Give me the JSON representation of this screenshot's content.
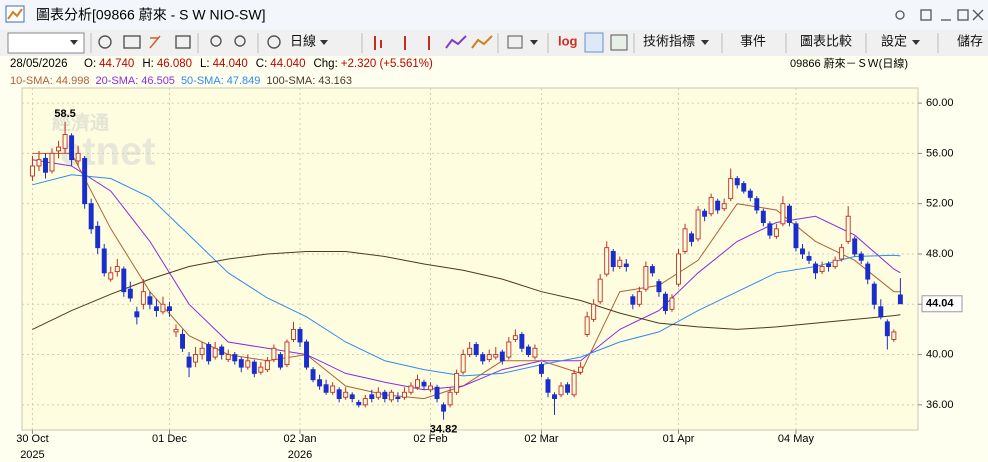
{
  "window": {
    "title": "圖表分析[09866 蔚來 - S W NIO-SW]",
    "toolbar": {
      "period": "日線",
      "log": "log",
      "indicators": "技術指標",
      "events": "事件",
      "compare": "圖表比較",
      "settings": "設定",
      "save": "儲存"
    }
  },
  "header": {
    "date": "28/05/2026",
    "fields": [
      {
        "label": "O:",
        "value": "44.740"
      },
      {
        "label": "H:",
        "value": "46.080"
      },
      {
        "label": "L:",
        "value": "44.040"
      },
      {
        "label": "C:",
        "value": "44.040"
      },
      {
        "label": "Chg:",
        "value": "+2.320 (+5.561%)"
      }
    ],
    "stock": "09866 蔚來－ＳＷ(日線)"
  },
  "watermark": [
    "經濟通",
    "etnet"
  ],
  "chart_data": {
    "type": "candlestick",
    "separator": ":",
    "ylim": [
      34,
      61.2
    ],
    "yticks": [
      {
        "value": 36,
        "label": "36.00"
      },
      {
        "value": 40,
        "label": "40.00"
      },
      {
        "value": 44,
        "label": "44.00"
      },
      {
        "value": 48,
        "label": "48.00"
      },
      {
        "value": 52,
        "label": "52.00"
      },
      {
        "value": 56,
        "label": "56.00"
      },
      {
        "value": 60,
        "label": "60.00"
      }
    ],
    "xlim": [
      -1.6,
      135.7
    ],
    "xticks": [
      {
        "value": 0,
        "label": "30 Oct"
      },
      {
        "value": 21,
        "label": "01 Dec"
      },
      {
        "value": 41,
        "label": "02 Jan"
      },
      {
        "value": 61,
        "label": "02 Feb"
      },
      {
        "value": 78,
        "label": "02 Mar"
      },
      {
        "value": 99,
        "label": "01 Apr"
      },
      {
        "value": 117,
        "label": "04 May"
      }
    ],
    "xtick_years": [
      {
        "value": 0,
        "label": "2025"
      },
      {
        "value": 41,
        "label": "2026"
      }
    ],
    "last_price": 44.04,
    "annotations": [
      {
        "label": "58.5",
        "value": 58.5,
        "x": 5
      },
      {
        "label": "34.82",
        "value": 34.82,
        "x": 63
      }
    ],
    "up_color": "#c03020",
    "down_color": "#1a2ecc",
    "grid": true,
    "candles": [
      [
        54.2,
        55.8,
        53.8,
        55.0
      ],
      [
        55.0,
        56.2,
        54.6,
        55.5
      ],
      [
        55.6,
        56.0,
        54.0,
        54.5
      ],
      [
        54.6,
        56.4,
        54.4,
        56.0
      ],
      [
        56.2,
        57.0,
        55.6,
        56.5
      ],
      [
        56.4,
        58.5,
        56.0,
        57.5
      ],
      [
        57.4,
        57.6,
        55.0,
        55.5
      ],
      [
        55.4,
        56.6,
        55.0,
        56.0
      ],
      [
        55.6,
        55.8,
        51.6,
        52.0
      ],
      [
        52.0,
        52.4,
        49.6,
        50.0
      ],
      [
        50.2,
        50.6,
        48.0,
        48.5
      ],
      [
        48.4,
        48.8,
        46.2,
        46.5
      ],
      [
        46.0,
        47.0,
        45.8,
        46.5
      ],
      [
        46.6,
        47.6,
        46.2,
        47.0
      ],
      [
        46.8,
        47.0,
        44.6,
        45.0
      ],
      [
        45.2,
        45.8,
        44.2,
        44.5
      ],
      [
        43.4,
        43.8,
        42.4,
        43.0
      ],
      [
        44.0,
        46.0,
        43.6,
        45.0
      ],
      [
        44.6,
        45.0,
        43.6,
        44.0
      ],
      [
        43.8,
        44.4,
        43.0,
        43.5
      ],
      [
        43.4,
        44.6,
        43.2,
        44.0
      ],
      [
        43.8,
        44.2,
        43.0,
        43.5
      ],
      [
        41.8,
        42.4,
        41.4,
        42.0
      ],
      [
        41.6,
        42.0,
        40.2,
        40.5
      ],
      [
        39.8,
        40.2,
        38.2,
        39.0
      ],
      [
        39.4,
        40.6,
        39.0,
        40.0
      ],
      [
        40.0,
        41.0,
        39.6,
        40.5
      ],
      [
        40.8,
        41.0,
        39.2,
        39.5
      ],
      [
        39.8,
        41.0,
        39.6,
        40.5
      ],
      [
        40.6,
        40.8,
        39.6,
        40.0
      ],
      [
        39.6,
        40.4,
        39.4,
        40.0
      ],
      [
        40.0,
        40.2,
        39.2,
        39.5
      ],
      [
        39.6,
        39.8,
        38.6,
        39.0
      ],
      [
        39.0,
        40.0,
        38.8,
        39.5
      ],
      [
        39.4,
        39.6,
        38.2,
        38.5
      ],
      [
        38.6,
        39.4,
        38.4,
        39.0
      ],
      [
        38.8,
        39.8,
        38.6,
        39.5
      ],
      [
        39.6,
        40.8,
        39.4,
        40.5
      ],
      [
        40.0,
        40.2,
        38.8,
        39.0
      ],
      [
        39.2,
        41.2,
        39.0,
        41.0
      ],
      [
        41.2,
        42.6,
        41.0,
        42.0
      ],
      [
        42.0,
        42.2,
        40.6,
        41.0
      ],
      [
        41.0,
        41.2,
        38.8,
        39.0
      ],
      [
        38.8,
        39.0,
        37.8,
        38.0
      ],
      [
        38.0,
        38.4,
        37.2,
        37.5
      ],
      [
        37.6,
        38.0,
        36.8,
        37.0
      ],
      [
        37.0,
        37.8,
        36.8,
        37.5
      ],
      [
        37.2,
        37.4,
        36.2,
        36.5
      ],
      [
        36.6,
        37.4,
        36.4,
        37.0
      ],
      [
        36.8,
        37.0,
        36.2,
        36.5
      ],
      [
        36.2,
        36.4,
        35.8,
        36.0
      ],
      [
        36.0,
        36.8,
        35.8,
        36.5
      ],
      [
        36.8,
        37.2,
        36.2,
        36.5
      ],
      [
        36.6,
        37.4,
        36.4,
        37.0
      ],
      [
        37.0,
        37.2,
        36.2,
        36.5
      ],
      [
        36.4,
        37.2,
        36.2,
        37.0
      ],
      [
        36.6,
        37.0,
        36.2,
        36.5
      ],
      [
        36.6,
        37.4,
        36.4,
        37.0
      ],
      [
        37.0,
        37.8,
        36.8,
        37.5
      ],
      [
        37.4,
        38.4,
        37.2,
        38.0
      ],
      [
        37.8,
        38.0,
        37.2,
        37.5
      ],
      [
        37.2,
        37.8,
        37.0,
        37.5
      ],
      [
        37.4,
        37.6,
        36.2,
        36.5
      ],
      [
        36.0,
        36.2,
        34.82,
        35.5
      ],
      [
        36.0,
        37.4,
        35.8,
        37.0
      ],
      [
        37.0,
        38.8,
        36.8,
        38.5
      ],
      [
        38.6,
        40.4,
        38.4,
        40.0
      ],
      [
        40.0,
        41.0,
        39.8,
        40.5
      ],
      [
        40.8,
        41.0,
        39.8,
        40.0
      ],
      [
        40.0,
        40.2,
        39.2,
        39.5
      ],
      [
        39.6,
        40.4,
        39.4,
        40.0
      ],
      [
        39.8,
        40.6,
        39.6,
        40.0
      ],
      [
        40.2,
        40.4,
        39.2,
        39.5
      ],
      [
        39.8,
        41.4,
        39.6,
        41.0
      ],
      [
        41.2,
        42.0,
        41.0,
        41.5
      ],
      [
        41.6,
        41.8,
        40.2,
        40.5
      ],
      [
        40.6,
        40.8,
        39.8,
        40.0
      ],
      [
        39.8,
        40.8,
        39.6,
        40.5
      ],
      [
        39.2,
        39.4,
        38.2,
        38.5
      ],
      [
        38.0,
        38.2,
        36.6,
        37.0
      ],
      [
        36.8,
        37.0,
        35.2,
        36.5
      ],
      [
        36.8,
        37.8,
        36.6,
        37.5
      ],
      [
        37.6,
        37.8,
        36.8,
        37.0
      ],
      [
        36.8,
        38.8,
        36.6,
        38.5
      ],
      [
        38.6,
        39.4,
        38.4,
        39.0
      ],
      [
        41.6,
        43.4,
        41.4,
        43.0
      ],
      [
        42.8,
        44.4,
        42.6,
        44.0
      ],
      [
        44.2,
        46.4,
        44.0,
        46.0
      ],
      [
        46.4,
        49.0,
        46.2,
        48.5
      ],
      [
        48.2,
        48.4,
        46.6,
        47.0
      ],
      [
        47.0,
        47.8,
        46.8,
        47.5
      ],
      [
        47.2,
        47.6,
        46.6,
        47.0
      ],
      [
        44.6,
        44.8,
        43.6,
        44.0
      ],
      [
        44.0,
        45.4,
        43.8,
        45.0
      ],
      [
        45.2,
        47.4,
        45.0,
        47.0
      ],
      [
        47.0,
        47.2,
        46.2,
        46.5
      ],
      [
        45.8,
        46.0,
        44.6,
        45.0
      ],
      [
        44.8,
        45.0,
        43.2,
        43.5
      ],
      [
        43.6,
        44.8,
        43.4,
        44.5
      ],
      [
        45.6,
        48.4,
        45.4,
        48.0
      ],
      [
        48.2,
        50.4,
        48.0,
        50.0
      ],
      [
        49.6,
        49.8,
        48.6,
        49.0
      ],
      [
        49.2,
        51.8,
        49.0,
        51.5
      ],
      [
        51.4,
        51.6,
        50.6,
        51.0
      ],
      [
        51.2,
        52.8,
        51.0,
        52.5
      ],
      [
        52.2,
        52.4,
        51.2,
        51.5
      ],
      [
        51.6,
        52.4,
        51.4,
        52.0
      ],
      [
        52.4,
        54.8,
        52.2,
        54.0
      ],
      [
        54.0,
        54.2,
        53.2,
        53.5
      ],
      [
        53.6,
        53.8,
        52.8,
        53.0
      ],
      [
        53.0,
        53.2,
        52.2,
        52.5
      ],
      [
        52.4,
        52.6,
        51.2,
        51.5
      ],
      [
        51.4,
        51.6,
        50.2,
        50.5
      ],
      [
        50.4,
        50.6,
        49.2,
        49.5
      ],
      [
        49.4,
        50.4,
        49.2,
        50.0
      ],
      [
        50.4,
        52.6,
        50.2,
        52.0
      ],
      [
        51.8,
        52.0,
        50.2,
        50.5
      ],
      [
        50.4,
        50.6,
        48.2,
        48.5
      ],
      [
        48.4,
        48.8,
        47.6,
        48.0
      ],
      [
        47.8,
        48.2,
        47.2,
        47.5
      ],
      [
        47.2,
        47.4,
        46.0,
        46.5
      ],
      [
        46.6,
        47.4,
        46.4,
        47.0
      ],
      [
        47.2,
        47.4,
        46.6,
        47.0
      ],
      [
        47.0,
        47.8,
        46.8,
        47.5
      ],
      [
        47.6,
        48.8,
        47.4,
        48.5
      ],
      [
        49.0,
        51.8,
        48.8,
        51.0
      ],
      [
        49.2,
        49.4,
        47.8,
        48.0
      ],
      [
        48.0,
        48.2,
        47.2,
        47.5
      ],
      [
        47.2,
        47.4,
        45.6,
        46.0
      ],
      [
        45.6,
        45.8,
        43.6,
        44.0
      ],
      [
        43.8,
        44.4,
        42.8,
        43.0
      ],
      [
        42.6,
        42.8,
        40.4,
        41.5
      ],
      [
        41.2,
        42.0,
        41.0,
        41.8
      ],
      [
        44.74,
        46.08,
        44.04,
        44.04
      ]
    ],
    "sma_x": [
      0,
      6,
      12,
      18,
      24,
      30,
      36,
      42,
      48,
      54,
      60,
      66,
      72,
      78,
      84,
      90,
      96,
      102,
      108,
      114,
      120,
      126,
      132,
      133
    ],
    "series": [
      {
        "name": "10-SMA",
        "color": "#b0603a",
        "values": [
          56,
          56,
          50,
          45,
          41.5,
          40,
          39.5,
          40,
          37.5,
          36.8,
          36.5,
          37.5,
          39.5,
          39.5,
          38.5,
          45,
          45.5,
          47.5,
          52,
          51.5,
          49,
          47.5,
          45,
          44.998
        ]
      },
      {
        "name": "20-SMA",
        "color": "#8a2be2",
        "values": [
          55.5,
          55,
          53,
          49,
          44,
          41,
          40.5,
          40,
          38.5,
          37.8,
          37.2,
          37.5,
          38.8,
          39.5,
          39.5,
          42,
          43.5,
          46.5,
          49,
          50.5,
          51,
          49.5,
          46.8,
          46.505
        ]
      },
      {
        "name": "50-SMA",
        "color": "#2f8af0",
        "values": [
          53.5,
          54.3,
          54,
          52.5,
          49.5,
          46.5,
          44.5,
          43,
          41,
          39.5,
          38.8,
          38.3,
          38.5,
          39.2,
          39.8,
          41,
          41.8,
          43.5,
          45,
          46.5,
          47,
          47.8,
          47.9,
          47.849
        ]
      },
      {
        "name": "100-SMA",
        "color": "#4a3a20",
        "values": [
          42,
          43.5,
          44.8,
          46,
          47,
          47.6,
          48,
          48.2,
          48.2,
          47.8,
          47.2,
          46.7,
          46,
          45,
          44.3,
          43.3,
          42.5,
          42.2,
          42,
          42.2,
          42.5,
          42.8,
          43.1,
          43.163
        ]
      }
    ]
  }
}
